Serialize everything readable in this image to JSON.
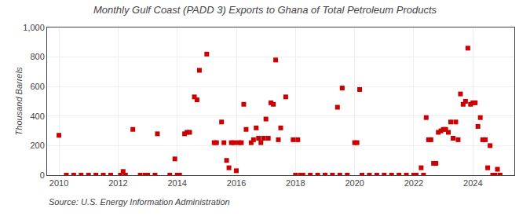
{
  "chart_data": {
    "type": "scatter",
    "title": "Monthly Gulf Coast (PADD 3) Exports to Ghana of Total Petroleum Products",
    "ylabel": "Thousand Barrels",
    "annotations": [
      "Source: U.S. Energy Information Administration"
    ],
    "color": "#cc0000",
    "marker": "square",
    "grid": true,
    "xlim": [
      2009.6,
      2025.4
    ],
    "xticks": [
      2010,
      2012,
      2014,
      2016,
      2018,
      2020,
      2022,
      2024
    ],
    "ylim": [
      0,
      1000
    ],
    "yticks": [
      0,
      200,
      400,
      600,
      800,
      {
        "value": 1000,
        "label": "1,000"
      }
    ],
    "x": [
      2010.0,
      2010.25,
      2010.5,
      2010.75,
      2011.0,
      2011.25,
      2011.5,
      2011.75,
      2012.08,
      2012.17,
      2012.25,
      2012.5,
      2012.75,
      2012.92,
      2013.0,
      2013.25,
      2013.33,
      2013.75,
      2013.92,
      2014.0,
      2014.08,
      2014.25,
      2014.33,
      2014.42,
      2014.58,
      2014.67,
      2014.75,
      2015.0,
      2015.25,
      2015.33,
      2015.5,
      2015.58,
      2015.67,
      2015.75,
      2015.83,
      2015.92,
      2016.0,
      2016.08,
      2016.17,
      2016.25,
      2016.33,
      2016.5,
      2016.58,
      2016.67,
      2016.75,
      2016.83,
      2016.92,
      2017.0,
      2017.08,
      2017.17,
      2017.25,
      2017.33,
      2017.42,
      2017.5,
      2017.67,
      2017.92,
      2018.0,
      2018.08,
      2018.17,
      2018.25,
      2018.5,
      2018.75,
      2019.0,
      2019.25,
      2019.42,
      2019.5,
      2019.58,
      2019.75,
      2020.0,
      2020.08,
      2020.17,
      2020.25,
      2020.5,
      2020.75,
      2021.0,
      2021.25,
      2021.5,
      2021.75,
      2022.0,
      2022.08,
      2022.25,
      2022.33,
      2022.42,
      2022.5,
      2022.58,
      2022.67,
      2022.75,
      2022.83,
      2022.92,
      2023.0,
      2023.08,
      2023.17,
      2023.25,
      2023.33,
      2023.42,
      2023.5,
      2023.58,
      2023.67,
      2023.75,
      2023.83,
      2023.92,
      2024.0,
      2024.08,
      2024.17,
      2024.25,
      2024.33,
      2024.42,
      2024.5,
      2024.58,
      2024.67,
      2024.75,
      2024.83,
      2024.92
    ],
    "values": [
      270,
      0,
      0,
      0,
      0,
      0,
      0,
      0,
      0,
      25,
      0,
      310,
      0,
      0,
      0,
      0,
      280,
      0,
      110,
      0,
      0,
      280,
      290,
      290,
      530,
      510,
      710,
      820,
      220,
      220,
      360,
      220,
      100,
      50,
      220,
      220,
      30,
      220,
      220,
      480,
      310,
      220,
      240,
      320,
      250,
      220,
      250,
      380,
      250,
      490,
      480,
      780,
      240,
      320,
      530,
      240,
      0,
      240,
      0,
      0,
      0,
      0,
      0,
      0,
      460,
      0,
      590,
      0,
      220,
      220,
      580,
      0,
      0,
      0,
      0,
      0,
      0,
      0,
      0,
      0,
      50,
      0,
      390,
      240,
      240,
      80,
      80,
      290,
      300,
      310,
      310,
      290,
      360,
      250,
      360,
      240,
      550,
      480,
      500,
      860,
      480,
      490,
      490,
      330,
      390,
      240,
      240,
      50,
      200,
      0,
      0,
      40,
      0
    ]
  }
}
